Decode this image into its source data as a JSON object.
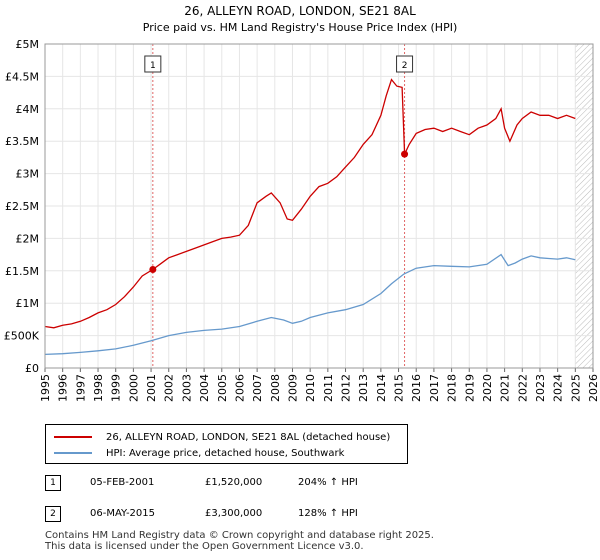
{
  "chart_data": {
    "type": "line",
    "title": "26, ALLEYN ROAD, LONDON, SE21 8AL",
    "subtitle": "Price paid vs. HM Land Registry's House Price Index (HPI)",
    "xlim": [
      1995,
      2026
    ],
    "ylim": [
      0,
      5000000
    ],
    "x_ticks": [
      1995,
      1996,
      1997,
      1998,
      1999,
      2000,
      2001,
      2002,
      2003,
      2004,
      2005,
      2006,
      2007,
      2008,
      2009,
      2010,
      2011,
      2012,
      2013,
      2014,
      2015,
      2016,
      2017,
      2018,
      2019,
      2020,
      2021,
      2022,
      2023,
      2024,
      2025,
      2026
    ],
    "y_ticks": [
      {
        "value": 0,
        "label": "£0"
      },
      {
        "value": 500000,
        "label": "£500K"
      },
      {
        "value": 1000000,
        "label": "£1M"
      },
      {
        "value": 1500000,
        "label": "£1.5M"
      },
      {
        "value": 2000000,
        "label": "£2M"
      },
      {
        "value": 2500000,
        "label": "£2.5M"
      },
      {
        "value": 3000000,
        "label": "£3M"
      },
      {
        "value": 3500000,
        "label": "£3.5M"
      },
      {
        "value": 4000000,
        "label": "£4M"
      },
      {
        "value": 4500000,
        "label": "£4.5M"
      },
      {
        "value": 5000000,
        "label": "£5M"
      }
    ],
    "future_hatch_from": 2025.0,
    "series": [
      {
        "name": "26, ALLEYN ROAD, LONDON, SE21 8AL (detached house)",
        "color": "#cc0000",
        "points": [
          [
            1995.0,
            640000
          ],
          [
            1995.5,
            620000
          ],
          [
            1996.0,
            660000
          ],
          [
            1996.5,
            680000
          ],
          [
            1997.0,
            720000
          ],
          [
            1997.5,
            780000
          ],
          [
            1998.0,
            850000
          ],
          [
            1998.5,
            900000
          ],
          [
            1999.0,
            980000
          ],
          [
            1999.5,
            1100000
          ],
          [
            2000.0,
            1250000
          ],
          [
            2000.5,
            1420000
          ],
          [
            2001.1,
            1520000
          ],
          [
            2001.5,
            1600000
          ],
          [
            2002.0,
            1700000
          ],
          [
            2002.5,
            1750000
          ],
          [
            2003.0,
            1800000
          ],
          [
            2003.5,
            1850000
          ],
          [
            2004.0,
            1900000
          ],
          [
            2004.5,
            1950000
          ],
          [
            2005.0,
            2000000
          ],
          [
            2005.5,
            2020000
          ],
          [
            2006.0,
            2050000
          ],
          [
            2006.5,
            2200000
          ],
          [
            2007.0,
            2550000
          ],
          [
            2007.5,
            2650000
          ],
          [
            2007.8,
            2700000
          ],
          [
            2008.3,
            2550000
          ],
          [
            2008.7,
            2300000
          ],
          [
            2009.0,
            2280000
          ],
          [
            2009.5,
            2450000
          ],
          [
            2010.0,
            2650000
          ],
          [
            2010.5,
            2800000
          ],
          [
            2011.0,
            2850000
          ],
          [
            2011.5,
            2950000
          ],
          [
            2012.0,
            3100000
          ],
          [
            2012.5,
            3250000
          ],
          [
            2013.0,
            3450000
          ],
          [
            2013.5,
            3600000
          ],
          [
            2014.0,
            3900000
          ],
          [
            2014.3,
            4200000
          ],
          [
            2014.6,
            4450000
          ],
          [
            2014.9,
            4350000
          ],
          [
            2015.2,
            4330000
          ],
          [
            2015.34,
            3300000
          ],
          [
            2015.6,
            3450000
          ],
          [
            2016.0,
            3620000
          ],
          [
            2016.5,
            3680000
          ],
          [
            2017.0,
            3700000
          ],
          [
            2017.5,
            3650000
          ],
          [
            2018.0,
            3700000
          ],
          [
            2018.5,
            3650000
          ],
          [
            2019.0,
            3600000
          ],
          [
            2019.5,
            3700000
          ],
          [
            2020.0,
            3750000
          ],
          [
            2020.5,
            3850000
          ],
          [
            2020.8,
            4000000
          ],
          [
            2021.0,
            3700000
          ],
          [
            2021.3,
            3500000
          ],
          [
            2021.7,
            3750000
          ],
          [
            2022.0,
            3850000
          ],
          [
            2022.5,
            3950000
          ],
          [
            2023.0,
            3900000
          ],
          [
            2023.5,
            3900000
          ],
          [
            2024.0,
            3850000
          ],
          [
            2024.5,
            3900000
          ],
          [
            2025.0,
            3850000
          ]
        ]
      },
      {
        "name": "HPI: Average price, detached house, Southwark",
        "color": "#6699cc",
        "points": [
          [
            1995.0,
            210000
          ],
          [
            1996.0,
            220000
          ],
          [
            1997.0,
            240000
          ],
          [
            1998.0,
            265000
          ],
          [
            1999.0,
            295000
          ],
          [
            2000.0,
            350000
          ],
          [
            2001.0,
            420000
          ],
          [
            2002.0,
            500000
          ],
          [
            2003.0,
            550000
          ],
          [
            2004.0,
            580000
          ],
          [
            2005.0,
            600000
          ],
          [
            2006.0,
            640000
          ],
          [
            2007.0,
            720000
          ],
          [
            2007.8,
            780000
          ],
          [
            2008.5,
            740000
          ],
          [
            2009.0,
            690000
          ],
          [
            2009.5,
            720000
          ],
          [
            2010.0,
            780000
          ],
          [
            2011.0,
            850000
          ],
          [
            2012.0,
            900000
          ],
          [
            2013.0,
            980000
          ],
          [
            2014.0,
            1150000
          ],
          [
            2014.6,
            1300000
          ],
          [
            2015.3,
            1450000
          ],
          [
            2016.0,
            1540000
          ],
          [
            2017.0,
            1580000
          ],
          [
            2018.0,
            1570000
          ],
          [
            2019.0,
            1560000
          ],
          [
            2020.0,
            1600000
          ],
          [
            2020.8,
            1750000
          ],
          [
            2021.2,
            1580000
          ],
          [
            2021.6,
            1620000
          ],
          [
            2022.0,
            1680000
          ],
          [
            2022.5,
            1730000
          ],
          [
            2023.0,
            1700000
          ],
          [
            2023.5,
            1690000
          ],
          [
            2024.0,
            1680000
          ],
          [
            2024.5,
            1700000
          ],
          [
            2025.0,
            1670000
          ]
        ]
      }
    ],
    "sales": [
      {
        "label": "1",
        "x": 2001.1,
        "value": 1520000
      },
      {
        "label": "2",
        "x": 2015.34,
        "value": 3300000
      }
    ]
  },
  "legend": {
    "property": "26, ALLEYN ROAD, LONDON, SE21 8AL (detached house)",
    "hpi": "HPI: Average price, detached house, Southwark",
    "property_color": "#cc0000",
    "hpi_color": "#6699cc"
  },
  "sales_table": [
    {
      "num": "1",
      "date": "05-FEB-2001",
      "price": "£1,520,000",
      "hpi": "204% ↑ HPI"
    },
    {
      "num": "2",
      "date": "06-MAY-2015",
      "price": "£3,300,000",
      "hpi": "128% ↑ HPI"
    }
  ],
  "footer": {
    "line1": "Contains HM Land Registry data © Crown copyright and database right 2025.",
    "line2": "This data is licensed under the Open Government Licence v3.0."
  }
}
